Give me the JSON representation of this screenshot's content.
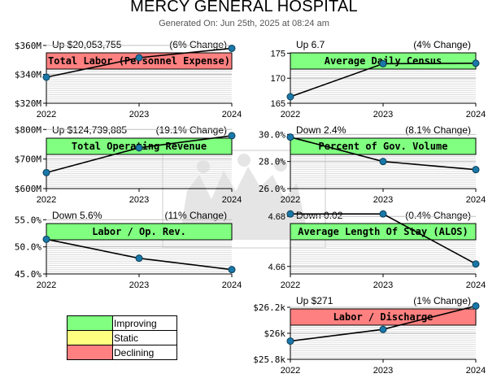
{
  "header": {
    "title": "MERCY GENERAL HOSPITAL",
    "subtitle": "Generated On: Jun 25th, 2025 at 08:24 am"
  },
  "colors": {
    "improving": "#80ff80",
    "static": "#ffff80",
    "declining": "#ff8080",
    "line": "#000000",
    "marker": "#1a78a8"
  },
  "legend": [
    {
      "label": "Improving",
      "color": "#80ff80"
    },
    {
      "label": "Static",
      "color": "#ffff80"
    },
    {
      "label": "Declining",
      "color": "#ff8080"
    }
  ],
  "chart_data": [
    {
      "type": "line",
      "title": "Total Labor (Personnel Expense)",
      "trend": "declining",
      "summary_left": "Up $20,053,755",
      "summary_right": "(6% Change)",
      "x": [
        "2022",
        "2023",
        "2024"
      ],
      "values": [
        338000000,
        351500000,
        358000000
      ],
      "ylim": [
        320000000,
        365000000
      ],
      "yticks": [
        320000000,
        340000000,
        360000000
      ],
      "ytick_labels": [
        "$320M",
        "$340M",
        "$360M"
      ]
    },
    {
      "type": "line",
      "title": "Average Daily Census",
      "trend": "improving",
      "summary_left": "Up 6.7",
      "summary_right": "(4% Change)",
      "x": [
        "2022",
        "2023",
        "2024"
      ],
      "values": [
        166.3,
        172.9,
        173.0
      ],
      "ylim": [
        165,
        178
      ],
      "yticks": [
        165,
        170,
        175
      ],
      "ytick_labels": [
        "165",
        "170",
        "175"
      ]
    },
    {
      "type": "line",
      "title": "Total Operating Revenue",
      "trend": "improving",
      "summary_left": "Up $124,739,885",
      "summary_right": "(19.1% Change)",
      "x": [
        "2022",
        "2023",
        "2024"
      ],
      "values": [
        654000000,
        738000000,
        779000000
      ],
      "ylim": [
        600000000,
        820000000
      ],
      "yticks": [
        600000000,
        700000000,
        800000000
      ],
      "ytick_labels": [
        "$600M",
        "$700M",
        "$800M"
      ]
    },
    {
      "type": "line",
      "title": "Percent of Gov. Volume",
      "trend": "improving",
      "summary_left": "Down 2.4%",
      "summary_right": "(8.1% Change)",
      "x": [
        "2022",
        "2023",
        "2024"
      ],
      "values": [
        29.8,
        28.0,
        27.4
      ],
      "ylim": [
        26.0,
        30.8
      ],
      "yticks": [
        26.0,
        28.0,
        30.0
      ],
      "ytick_labels": [
        "26.0%",
        "28.0%",
        "30.0%"
      ]
    },
    {
      "type": "line",
      "title": "Labor / Op. Rev.",
      "trend": "improving",
      "summary_left": "Down 5.6%",
      "summary_right": "(11% Change)",
      "x": [
        "2022",
        "2023",
        "2024"
      ],
      "values": [
        51.4,
        47.9,
        45.8
      ],
      "ylim": [
        45.0,
        57.0
      ],
      "yticks": [
        45.0,
        50.0,
        55.0
      ],
      "ytick_labels": [
        "45.0%",
        "50.0%",
        "55.0%"
      ]
    },
    {
      "type": "line",
      "title": "Average Length Of Stay (ALOS)",
      "trend": "improving",
      "summary_left": "Down 0.02",
      "summary_right": "(0.4% Change)",
      "x": [
        "2022",
        "2023",
        "2024"
      ],
      "values": [
        4.681,
        4.681,
        4.661
      ],
      "ylim": [
        4.657,
        4.683
      ],
      "yticks": [
        4.66,
        4.68
      ],
      "ytick_labels": [
        "4.66",
        "4.68"
      ]
    },
    {
      "type": "line",
      "title": "Labor / Discharge",
      "trend": "declining",
      "summary_left": "Up $271",
      "summary_right": "(1% Change)",
      "x": [
        "2022",
        "2023",
        "2024"
      ],
      "values": [
        25940,
        26030,
        26210
      ],
      "ylim": [
        25800,
        26300
      ],
      "yticks": [
        25800,
        26000,
        26200
      ],
      "ytick_labels": [
        "$25.8k",
        "$26k",
        "$26.2k"
      ]
    }
  ]
}
